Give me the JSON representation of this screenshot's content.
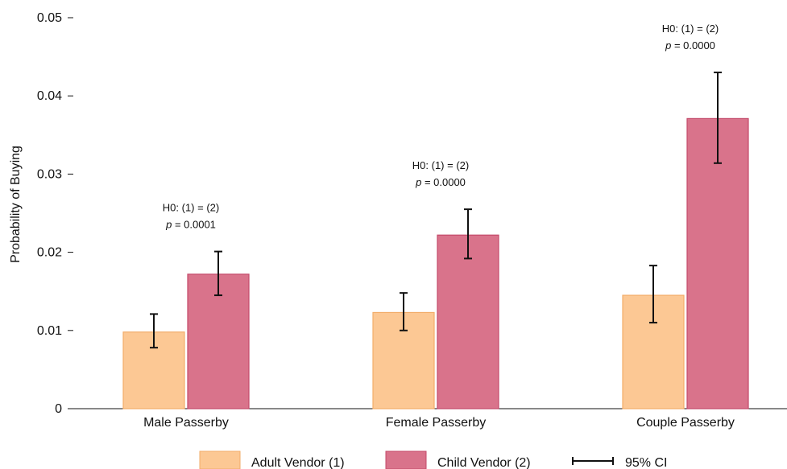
{
  "chart_data": {
    "type": "bar",
    "categories": [
      "Male Passerby",
      "Female Passerby",
      "Couple Passerby"
    ],
    "series": [
      {
        "name": "Adult Vendor (1)",
        "color": "#fcc894",
        "stroke": "#f2ad6a",
        "values": [
          0.0098,
          0.0123,
          0.0145
        ],
        "ci_low": [
          0.0078,
          0.01,
          0.011
        ],
        "ci_high": [
          0.0121,
          0.0148,
          0.0183
        ]
      },
      {
        "name": "Child Vendor (2)",
        "color": "#d9738b",
        "stroke": "#c44a6a",
        "values": [
          0.0172,
          0.0222,
          0.0371
        ],
        "ci_low": [
          0.0145,
          0.0192,
          0.0314
        ],
        "ci_high": [
          0.0201,
          0.0255,
          0.043
        ]
      }
    ],
    "annotations": [
      {
        "hypothesis": "H0: (1) = (2)",
        "p_label": "p",
        "p_value": " = 0.0001"
      },
      {
        "hypothesis": "H0: (1) = (2)",
        "p_label": "p",
        "p_value": " = 0.0000"
      },
      {
        "hypothesis": "H0: (1) = (2)",
        "p_label": "p",
        "p_value": " = 0.0000"
      }
    ],
    "ylabel": "Probability of Buying",
    "xlabel": "",
    "ylim": [
      0,
      0.05
    ],
    "yticks": [
      0,
      0.01,
      0.02,
      0.03,
      0.04,
      0.05
    ],
    "ytick_labels": [
      "0",
      "0.01",
      "0.02",
      "0.03",
      "0.04",
      "0.05"
    ],
    "ci_legend_label": "95% CI",
    "legend_position": "bottom",
    "grid": false
  }
}
